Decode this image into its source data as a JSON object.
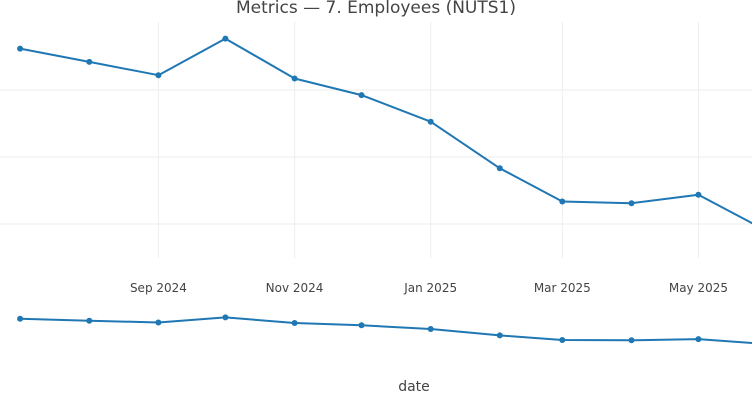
{
  "chart_data": {
    "type": "line",
    "title": "Metrics — 7. Employees (NUTS1)",
    "xlabel": "date",
    "ylabel": "",
    "x_range": [
      "2024-06-22",
      "2025-05-25"
    ],
    "x_ticks": [
      {
        "date": "2024-09-01",
        "label": "Sep 2024"
      },
      {
        "date": "2024-11-01",
        "label": "Nov 2024"
      },
      {
        "date": "2025-01-01",
        "label": "Jan 2025"
      },
      {
        "date": "2025-03-01",
        "label": "Mar 2025"
      },
      {
        "date": "2025-05-01",
        "label": "May 2025"
      }
    ],
    "x": [
      "2024-07-01",
      "2024-08-01",
      "2024-09-01",
      "2024-10-01",
      "2024-11-01",
      "2024-12-01",
      "2025-01-01",
      "2025-02-01",
      "2025-03-01",
      "2025-04-01",
      "2025-05-01",
      "2025-06-01"
    ],
    "grid": true,
    "color": "#1f77b4",
    "series": [
      {
        "values": [
          155,
          151,
          147,
          158,
          146,
          141,
          133,
          119,
          109,
          108.5,
          111,
          100
        ]
      }
    ],
    "series_context": [
      {
        "values": [
          155,
          151,
          147,
          158,
          146,
          141,
          133,
          119,
          109,
          108.5,
          111,
          100
        ]
      }
    ]
  }
}
